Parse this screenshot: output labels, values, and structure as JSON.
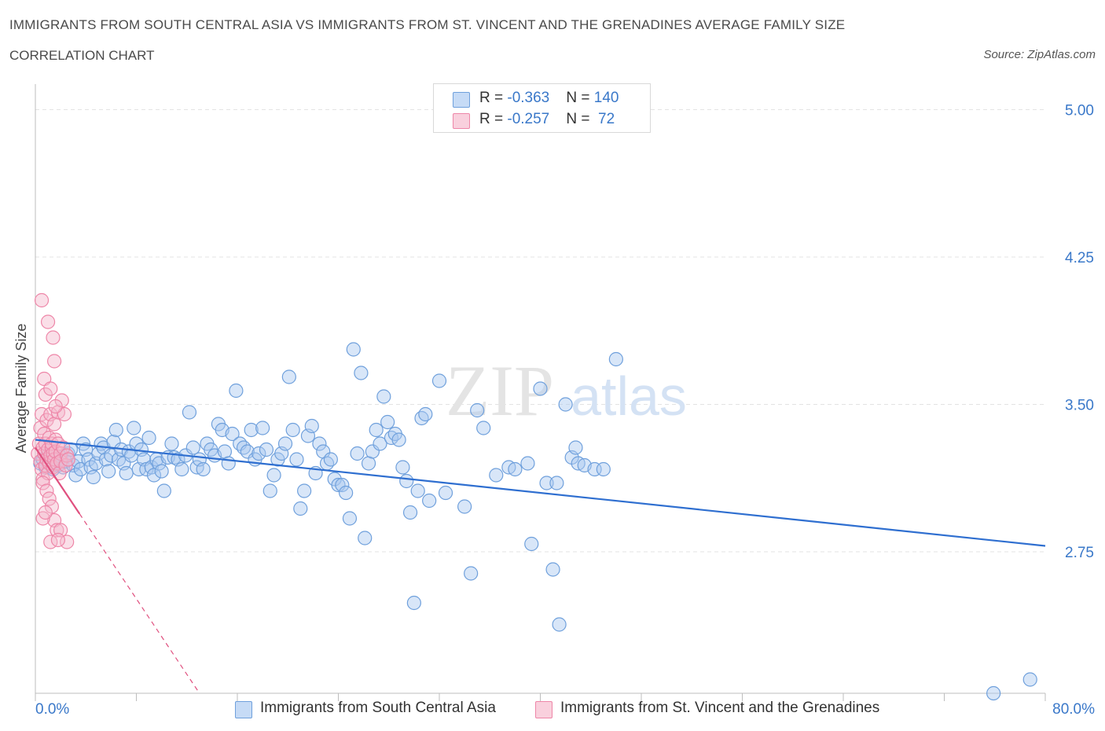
{
  "header": {
    "title": "IMMIGRANTS FROM SOUTH CENTRAL ASIA VS IMMIGRANTS FROM ST. VINCENT AND THE GRENADINES AVERAGE FAMILY SIZE",
    "subtitle": "CORRELATION CHART",
    "source": "Source: ZipAtlas.com"
  },
  "watermark": {
    "zip": "ZIP",
    "atlas": "atlas"
  },
  "legend_stats": [
    {
      "r_label": "R = ",
      "r_value": "-0.363",
      "n_label": "N = ",
      "n_value": "140",
      "color": "#a9c8f0"
    },
    {
      "r_label": "R = ",
      "r_value": "-0.257",
      "n_label": "N = ",
      "n_value": " 72",
      "color": "#f5b8cb"
    }
  ],
  "colors": {
    "blue_fill": "#a9c8f0",
    "blue_stroke": "#6fa0dc",
    "blue_line": "#2f6fd0",
    "pink_fill": "#f5b8cb",
    "pink_stroke": "#ee86a8",
    "pink_line": "#e0507f",
    "axis_label": "#3a78c9",
    "grid": "#e3e3e3"
  },
  "chart_data": {
    "type": "scatter",
    "title": "IMMIGRANTS FROM SOUTH CENTRAL ASIA VS IMMIGRANTS FROM ST. VINCENT AND THE GRENADINES AVERAGE FAMILY SIZE",
    "subtitle": "CORRELATION CHART",
    "xlabel": "",
    "ylabel": "Average Family Size",
    "xlim": [
      0,
      80
    ],
    "ylim": [
      2.03,
      5.09
    ],
    "x_tick_labels": [
      "0.0%",
      "80.0%"
    ],
    "y_ticks": [
      2.75,
      3.5,
      4.25,
      5.0
    ],
    "y_tick_labels": [
      "2.75",
      "3.50",
      "4.25",
      "5.00"
    ],
    "grid": true,
    "legend_position": "bottom",
    "series": [
      {
        "name": "Immigrants from South Central Asia",
        "r": -0.363,
        "n": 140,
        "trend": {
          "x": [
            0,
            80
          ],
          "y": [
            3.32,
            2.78
          ],
          "style": "solid"
        },
        "points": [
          [
            0.4,
            3.2
          ],
          [
            0.6,
            3.22
          ],
          [
            0.8,
            3.18
          ],
          [
            1.0,
            3.24
          ],
          [
            1.2,
            3.2
          ],
          [
            1.4,
            3.17
          ],
          [
            1.6,
            3.22
          ],
          [
            1.8,
            3.19
          ],
          [
            2.0,
            3.23
          ],
          [
            2.2,
            3.18
          ],
          [
            2.4,
            3.21
          ],
          [
            2.6,
            3.25
          ],
          [
            2.8,
            3.27
          ],
          [
            3.0,
            3.19
          ],
          [
            3.2,
            3.14
          ],
          [
            3.4,
            3.21
          ],
          [
            3.6,
            3.17
          ],
          [
            3.8,
            3.3
          ],
          [
            4.0,
            3.27
          ],
          [
            4.2,
            3.22
          ],
          [
            4.4,
            3.18
          ],
          [
            4.6,
            3.13
          ],
          [
            4.8,
            3.2
          ],
          [
            5.0,
            3.25
          ],
          [
            5.2,
            3.3
          ],
          [
            5.4,
            3.28
          ],
          [
            5.6,
            3.22
          ],
          [
            5.8,
            3.16
          ],
          [
            6.0,
            3.24
          ],
          [
            6.2,
            3.31
          ],
          [
            6.4,
            3.37
          ],
          [
            6.6,
            3.22
          ],
          [
            6.8,
            3.27
          ],
          [
            7.0,
            3.2
          ],
          [
            7.2,
            3.15
          ],
          [
            7.4,
            3.26
          ],
          [
            7.6,
            3.24
          ],
          [
            7.8,
            3.38
          ],
          [
            8.0,
            3.3
          ],
          [
            8.2,
            3.17
          ],
          [
            8.4,
            3.27
          ],
          [
            8.6,
            3.22
          ],
          [
            8.8,
            3.17
          ],
          [
            9.0,
            3.33
          ],
          [
            9.2,
            3.18
          ],
          [
            9.4,
            3.14
          ],
          [
            9.6,
            3.22
          ],
          [
            9.8,
            3.2
          ],
          [
            10.0,
            3.16
          ],
          [
            10.2,
            3.06
          ],
          [
            10.5,
            3.23
          ],
          [
            10.8,
            3.3
          ],
          [
            11.0,
            3.23
          ],
          [
            11.3,
            3.22
          ],
          [
            11.6,
            3.17
          ],
          [
            11.9,
            3.24
          ],
          [
            12.2,
            3.46
          ],
          [
            12.5,
            3.28
          ],
          [
            12.8,
            3.18
          ],
          [
            13.0,
            3.22
          ],
          [
            13.3,
            3.17
          ],
          [
            13.6,
            3.3
          ],
          [
            13.9,
            3.27
          ],
          [
            14.2,
            3.24
          ],
          [
            14.5,
            3.4
          ],
          [
            14.8,
            3.37
          ],
          [
            15.0,
            3.26
          ],
          [
            15.3,
            3.2
          ],
          [
            15.6,
            3.35
          ],
          [
            15.9,
            3.57
          ],
          [
            16.2,
            3.3
          ],
          [
            16.5,
            3.28
          ],
          [
            16.8,
            3.26
          ],
          [
            17.1,
            3.37
          ],
          [
            17.4,
            3.22
          ],
          [
            17.7,
            3.25
          ],
          [
            18.0,
            3.38
          ],
          [
            18.3,
            3.27
          ],
          [
            18.6,
            3.06
          ],
          [
            18.9,
            3.14
          ],
          [
            19.2,
            3.22
          ],
          [
            19.5,
            3.25
          ],
          [
            19.8,
            3.3
          ],
          [
            20.1,
            3.64
          ],
          [
            20.4,
            3.37
          ],
          [
            20.7,
            3.22
          ],
          [
            21.0,
            2.97
          ],
          [
            21.3,
            3.06
          ],
          [
            21.6,
            3.34
          ],
          [
            21.9,
            3.39
          ],
          [
            22.2,
            3.15
          ],
          [
            22.5,
            3.3
          ],
          [
            22.8,
            3.26
          ],
          [
            23.1,
            3.2
          ],
          [
            23.4,
            3.22
          ],
          [
            23.7,
            3.12
          ],
          [
            24.0,
            3.09
          ],
          [
            24.3,
            3.09
          ],
          [
            24.6,
            3.05
          ],
          [
            24.9,
            2.92
          ],
          [
            25.2,
            3.78
          ],
          [
            25.5,
            3.25
          ],
          [
            25.8,
            3.66
          ],
          [
            26.1,
            2.82
          ],
          [
            26.4,
            3.2
          ],
          [
            26.7,
            3.26
          ],
          [
            27.0,
            3.37
          ],
          [
            27.3,
            3.3
          ],
          [
            27.6,
            3.54
          ],
          [
            27.9,
            3.41
          ],
          [
            28.2,
            3.33
          ],
          [
            28.5,
            3.35
          ],
          [
            28.8,
            3.32
          ],
          [
            29.1,
            3.18
          ],
          [
            29.4,
            3.11
          ],
          [
            29.7,
            2.95
          ],
          [
            30.0,
            2.49
          ],
          [
            30.3,
            3.06
          ],
          [
            30.6,
            3.43
          ],
          [
            30.9,
            3.45
          ],
          [
            31.2,
            3.01
          ],
          [
            32.0,
            3.62
          ],
          [
            32.5,
            3.05
          ],
          [
            34.0,
            2.98
          ],
          [
            34.5,
            2.64
          ],
          [
            35.0,
            3.47
          ],
          [
            35.5,
            3.38
          ],
          [
            36.5,
            3.14
          ],
          [
            37.5,
            3.18
          ],
          [
            38.0,
            3.17
          ],
          [
            39.0,
            3.2
          ],
          [
            39.3,
            2.79
          ],
          [
            40.0,
            3.58
          ],
          [
            40.5,
            3.1
          ],
          [
            41.3,
            3.1
          ],
          [
            41.0,
            2.66
          ],
          [
            41.5,
            2.38
          ],
          [
            42.0,
            3.5
          ],
          [
            42.5,
            3.23
          ],
          [
            42.8,
            3.28
          ],
          [
            43.0,
            3.2
          ],
          [
            43.5,
            3.19
          ],
          [
            44.3,
            3.17
          ],
          [
            45.0,
            3.17
          ],
          [
            46.0,
            3.73
          ],
          [
            78.8,
            2.1
          ],
          [
            75.9,
            2.03
          ]
        ]
      },
      {
        "name": "Immigrants from St. Vincent and the Grenadines",
        "r": -0.257,
        "n": 72,
        "trend": {
          "x_solid": [
            0,
            3.5
          ],
          "x_dashed": [
            3.5,
            13
          ],
          "x": [
            0,
            13
          ],
          "y": [
            3.28,
            2.03
          ]
        },
        "points": [
          [
            0.2,
            3.25
          ],
          [
            0.3,
            3.3
          ],
          [
            0.4,
            3.21
          ],
          [
            0.4,
            3.38
          ],
          [
            0.5,
            3.45
          ],
          [
            0.5,
            3.17
          ],
          [
            0.6,
            3.28
          ],
          [
            0.6,
            3.12
          ],
          [
            0.7,
            3.35
          ],
          [
            0.7,
            3.25
          ],
          [
            0.8,
            3.3
          ],
          [
            0.8,
            3.19
          ],
          [
            0.9,
            3.42
          ],
          [
            0.9,
            3.22
          ],
          [
            1.0,
            3.27
          ],
          [
            1.0,
            3.15
          ],
          [
            1.1,
            3.33
          ],
          [
            1.1,
            3.2
          ],
          [
            1.2,
            3.24
          ],
          [
            1.2,
            3.45
          ],
          [
            1.3,
            3.28
          ],
          [
            1.3,
            3.3
          ],
          [
            1.4,
            3.18
          ],
          [
            1.4,
            3.25
          ],
          [
            1.5,
            3.4
          ],
          [
            1.5,
            3.22
          ],
          [
            1.6,
            3.32
          ],
          [
            1.6,
            3.26
          ],
          [
            1.7,
            3.2
          ],
          [
            1.8,
            3.46
          ],
          [
            1.8,
            3.3
          ],
          [
            1.9,
            3.15
          ],
          [
            2.0,
            3.25
          ],
          [
            2.0,
            3.21
          ],
          [
            2.1,
            3.52
          ],
          [
            2.2,
            3.28
          ],
          [
            2.3,
            3.45
          ],
          [
            2.4,
            3.19
          ],
          [
            2.5,
            3.24
          ],
          [
            2.6,
            3.22
          ],
          [
            0.5,
            4.03
          ],
          [
            1.0,
            3.92
          ],
          [
            1.4,
            3.84
          ],
          [
            1.5,
            3.72
          ],
          [
            0.7,
            3.63
          ],
          [
            0.8,
            3.55
          ],
          [
            1.2,
            3.58
          ],
          [
            1.6,
            3.49
          ],
          [
            0.6,
            3.1
          ],
          [
            0.9,
            3.06
          ],
          [
            1.1,
            3.02
          ],
          [
            1.3,
            2.98
          ],
          [
            1.5,
            2.91
          ],
          [
            1.7,
            2.86
          ],
          [
            2.0,
            2.86
          ],
          [
            2.5,
            2.8
          ],
          [
            1.2,
            2.8
          ],
          [
            0.6,
            2.92
          ],
          [
            0.8,
            2.95
          ],
          [
            1.8,
            2.81
          ]
        ]
      }
    ]
  },
  "legend_bottom": [
    {
      "label": "Immigrants from South Central Asia"
    },
    {
      "label": "Immigrants from St. Vincent and the Grenadines"
    }
  ]
}
